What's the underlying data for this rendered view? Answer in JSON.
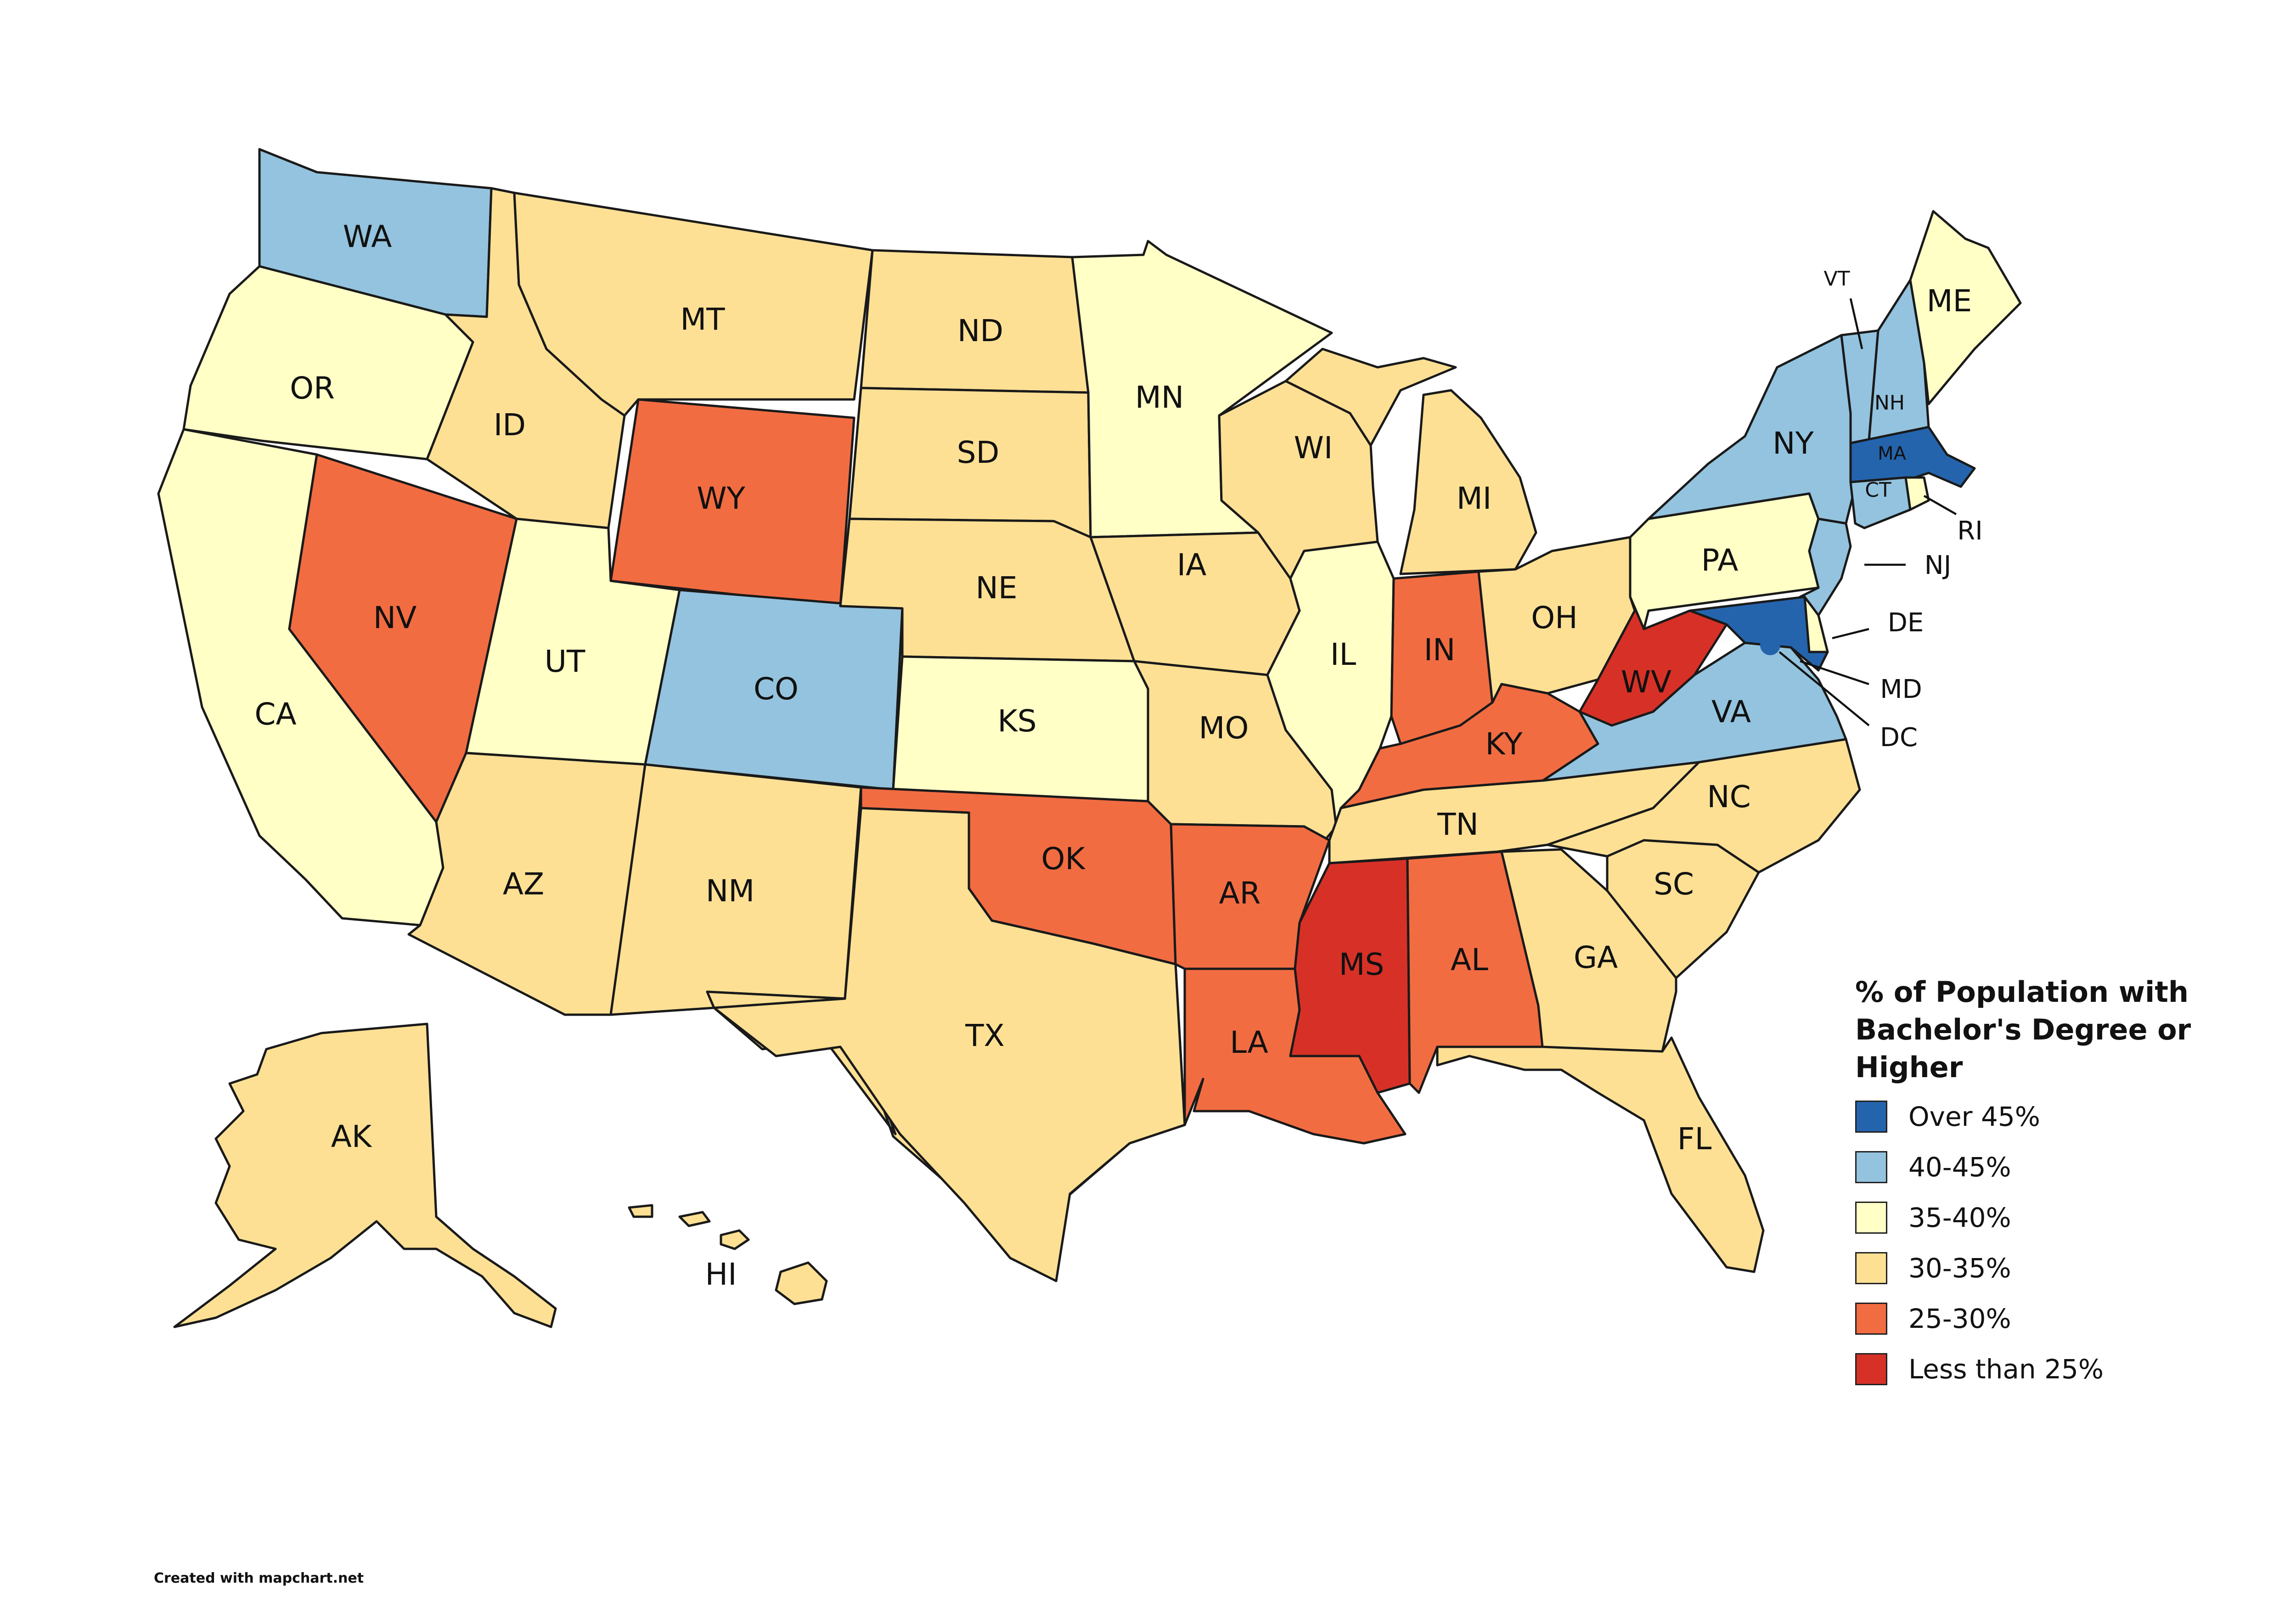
{
  "legend": {
    "title_lines": [
      "% of Population with",
      "Bachelor's Degree or",
      "Higher"
    ],
    "items": [
      {
        "key": "over45",
        "label": "Over 45%",
        "color": "#2464ad"
      },
      {
        "key": "40-45",
        "label": "40-45%",
        "color": "#93c3de"
      },
      {
        "key": "35-40",
        "label": "35-40%",
        "color": "#ffffc6"
      },
      {
        "key": "30-35",
        "label": "30-35%",
        "color": "#fee094"
      },
      {
        "key": "25-30",
        "label": "25-30%",
        "color": "#f26c42"
      },
      {
        "key": "under25",
        "label": "Less than 25%",
        "color": "#d73127"
      }
    ]
  },
  "credit": "Created with mapchart.net",
  "states": [
    {
      "code": "WA",
      "label": "WA",
      "category": "40-45"
    },
    {
      "code": "OR",
      "label": "OR",
      "category": "35-40"
    },
    {
      "code": "CA",
      "label": "CA",
      "category": "35-40"
    },
    {
      "code": "NV",
      "label": "NV",
      "category": "25-30"
    },
    {
      "code": "ID",
      "label": "ID",
      "category": "30-35"
    },
    {
      "code": "MT",
      "label": "MT",
      "category": "30-35"
    },
    {
      "code": "WY",
      "label": "WY",
      "category": "25-30"
    },
    {
      "code": "UT",
      "label": "UT",
      "category": "35-40"
    },
    {
      "code": "AZ",
      "label": "AZ",
      "category": "30-35"
    },
    {
      "code": "CO",
      "label": "CO",
      "category": "40-45"
    },
    {
      "code": "NM",
      "label": "NM",
      "category": "30-35"
    },
    {
      "code": "ND",
      "label": "ND",
      "category": "30-35"
    },
    {
      "code": "SD",
      "label": "SD",
      "category": "30-35"
    },
    {
      "code": "NE",
      "label": "NE",
      "category": "30-35"
    },
    {
      "code": "KS",
      "label": "KS",
      "category": "35-40"
    },
    {
      "code": "OK",
      "label": "OK",
      "category": "25-30"
    },
    {
      "code": "TX",
      "label": "TX",
      "category": "30-35"
    },
    {
      "code": "MN",
      "label": "MN",
      "category": "35-40"
    },
    {
      "code": "IA",
      "label": "IA",
      "category": "30-35"
    },
    {
      "code": "MO",
      "label": "MO",
      "category": "30-35"
    },
    {
      "code": "AR",
      "label": "AR",
      "category": "25-30"
    },
    {
      "code": "LA",
      "label": "LA",
      "category": "25-30"
    },
    {
      "code": "WI",
      "label": "WI",
      "category": "30-35"
    },
    {
      "code": "IL",
      "label": "IL",
      "category": "35-40"
    },
    {
      "code": "MI",
      "label": "MI",
      "category": "30-35"
    },
    {
      "code": "IN",
      "label": "IN",
      "category": "25-30"
    },
    {
      "code": "OH",
      "label": "OH",
      "category": "30-35"
    },
    {
      "code": "KY",
      "label": "KY",
      "category": "25-30"
    },
    {
      "code": "TN",
      "label": "TN",
      "category": "30-35"
    },
    {
      "code": "MS",
      "label": "MS",
      "category": "under25"
    },
    {
      "code": "AL",
      "label": "AL",
      "category": "25-30"
    },
    {
      "code": "GA",
      "label": "GA",
      "category": "30-35"
    },
    {
      "code": "FL",
      "label": "FL",
      "category": "30-35"
    },
    {
      "code": "SC",
      "label": "SC",
      "category": "30-35"
    },
    {
      "code": "NC",
      "label": "NC",
      "category": "30-35"
    },
    {
      "code": "VA",
      "label": "VA",
      "category": "40-45"
    },
    {
      "code": "WV",
      "label": "WV",
      "category": "under25"
    },
    {
      "code": "PA",
      "label": "PA",
      "category": "35-40"
    },
    {
      "code": "NY",
      "label": "NY",
      "category": "40-45"
    },
    {
      "code": "VT",
      "label": "VT",
      "category": "40-45"
    },
    {
      "code": "NH",
      "label": "NH",
      "category": "40-45"
    },
    {
      "code": "ME",
      "label": "ME",
      "category": "35-40"
    },
    {
      "code": "MA",
      "label": "MA",
      "category": "over45"
    },
    {
      "code": "RI",
      "label": "RI",
      "category": "35-40"
    },
    {
      "code": "CT",
      "label": "CT",
      "category": "40-45"
    },
    {
      "code": "NJ",
      "label": "NJ",
      "category": "40-45"
    },
    {
      "code": "DE",
      "label": "DE",
      "category": "35-40"
    },
    {
      "code": "MD",
      "label": "MD",
      "category": "over45"
    },
    {
      "code": "DC",
      "label": "DC",
      "category": "over45"
    },
    {
      "code": "AK",
      "label": "AK",
      "category": "30-35"
    },
    {
      "code": "HI",
      "label": "HI",
      "category": "30-35"
    }
  ]
}
